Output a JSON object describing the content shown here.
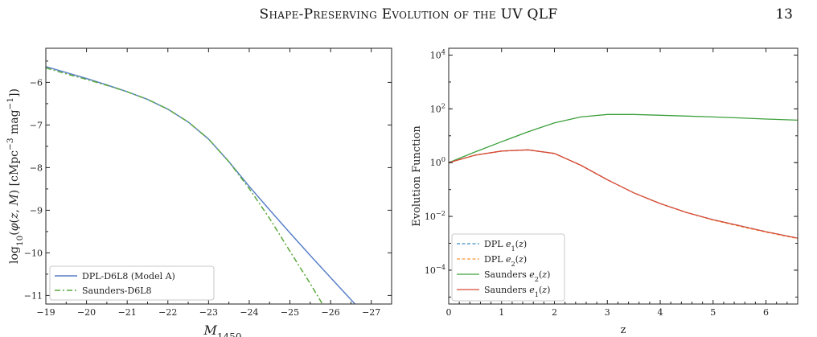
{
  "header": {
    "running_title": "Shape-Preserving Evolution of the UV QLF",
    "page_number": "13"
  },
  "chart_data": [
    {
      "type": "line",
      "xlabel": "M_1450",
      "ylabel": "log10(φ(z, M) [cMpc^-3 mag^-1])",
      "xlim": [
        -19.0,
        -27.5
      ],
      "ylim": [
        -11.2,
        -5.2
      ],
      "x_inverted": true,
      "x_ticks": [
        -19,
        -20,
        -21,
        -22,
        -23,
        -24,
        -25,
        -26,
        -27
      ],
      "y_ticks": [
        -6,
        -7,
        -8,
        -9,
        -10,
        -11
      ],
      "grid": false,
      "legend_position": "bottom-left",
      "series": [
        {
          "name": "DPL-D6L8 (Model A)",
          "color": "#5a80c8",
          "style": "solid",
          "x": [
            -19.0,
            -19.5,
            -20.0,
            -20.5,
            -21.0,
            -21.5,
            -22.0,
            -22.5,
            -23.0,
            -23.5,
            -24.0,
            -24.5,
            -25.0,
            -25.5,
            -26.0,
            -26.6
          ],
          "y": [
            -5.63,
            -5.77,
            -5.91,
            -6.06,
            -6.22,
            -6.4,
            -6.63,
            -6.93,
            -7.33,
            -7.86,
            -8.44,
            -8.99,
            -9.53,
            -10.06,
            -10.58,
            -11.2
          ]
        },
        {
          "name": "Saunders-D6L8",
          "color": "#5aa83c",
          "style": "dashdot",
          "x": [
            -19.0,
            -19.5,
            -20.0,
            -20.5,
            -21.0,
            -21.5,
            -22.0,
            -22.5,
            -23.0,
            -23.5,
            -24.0,
            -24.5,
            -25.0,
            -25.5,
            -25.8
          ],
          "y": [
            -5.66,
            -5.8,
            -5.93,
            -6.07,
            -6.22,
            -6.4,
            -6.63,
            -6.93,
            -7.33,
            -7.86,
            -8.49,
            -9.19,
            -9.96,
            -10.72,
            -11.2
          ]
        }
      ]
    },
    {
      "type": "line",
      "xlabel": "z",
      "ylabel": "Evolution Function",
      "xlim": [
        0,
        6.6
      ],
      "ylim": [
        5.5e-06,
        18000
      ],
      "y_scale": "log",
      "x_ticks": [
        0,
        1,
        2,
        3,
        4,
        5,
        6
      ],
      "y_ticks": [
        0.0001,
        0.01,
        1,
        100,
        10000
      ],
      "y_tick_labels": [
        "10^-4",
        "10^-2",
        "10^0",
        "10^2",
        "10^4"
      ],
      "grid": false,
      "legend_position": "bottom-left",
      "series": [
        {
          "name": "DPL e1(z)",
          "color": "#3d8fc4",
          "style": "dashed",
          "x": [
            0,
            0.5,
            1.0,
            1.5,
            2.0,
            2.5,
            3.0,
            3.5,
            4.0,
            4.5,
            5.0,
            5.5,
            6.0,
            6.6
          ],
          "y": [
            1.0,
            1.9,
            2.7,
            3.0,
            2.2,
            0.8,
            0.23,
            0.075,
            0.03,
            0.014,
            0.0075,
            0.0045,
            0.0027,
            0.00155
          ]
        },
        {
          "name": "DPL e2(z)",
          "color": "#f5993a",
          "style": "dashed",
          "x": [
            0,
            0.5,
            1.0,
            1.5,
            2.0,
            2.5,
            3.0,
            3.5,
            4.0,
            4.5,
            5.0,
            5.5,
            6.0,
            6.6
          ],
          "y": [
            1.0,
            1.9,
            2.7,
            3.0,
            2.2,
            0.8,
            0.23,
            0.075,
            0.03,
            0.014,
            0.0073,
            0.0043,
            0.0026,
            0.0015
          ]
        },
        {
          "name": "Saunders e2(z)",
          "color": "#3ca03c",
          "style": "solid",
          "x": [
            0,
            0.5,
            1.0,
            1.5,
            2.0,
            2.5,
            3.0,
            3.5,
            4.0,
            4.5,
            5.0,
            5.5,
            6.0,
            6.6
          ],
          "y": [
            1.0,
            2.5,
            6.0,
            14.0,
            30.0,
            50.0,
            62.0,
            62.0,
            58.0,
            54.0,
            50.0,
            46.0,
            42.0,
            38.0
          ]
        },
        {
          "name": "Saunders e1(z)",
          "color": "#d84a36",
          "style": "solid",
          "x": [
            0,
            0.5,
            1.0,
            1.5,
            2.0,
            2.5,
            3.0,
            3.5,
            4.0,
            4.5,
            5.0,
            5.5,
            6.0,
            6.6
          ],
          "y": [
            1.0,
            1.9,
            2.7,
            3.0,
            2.2,
            0.8,
            0.23,
            0.075,
            0.03,
            0.014,
            0.0075,
            0.0045,
            0.0027,
            0.00155
          ]
        }
      ]
    }
  ]
}
